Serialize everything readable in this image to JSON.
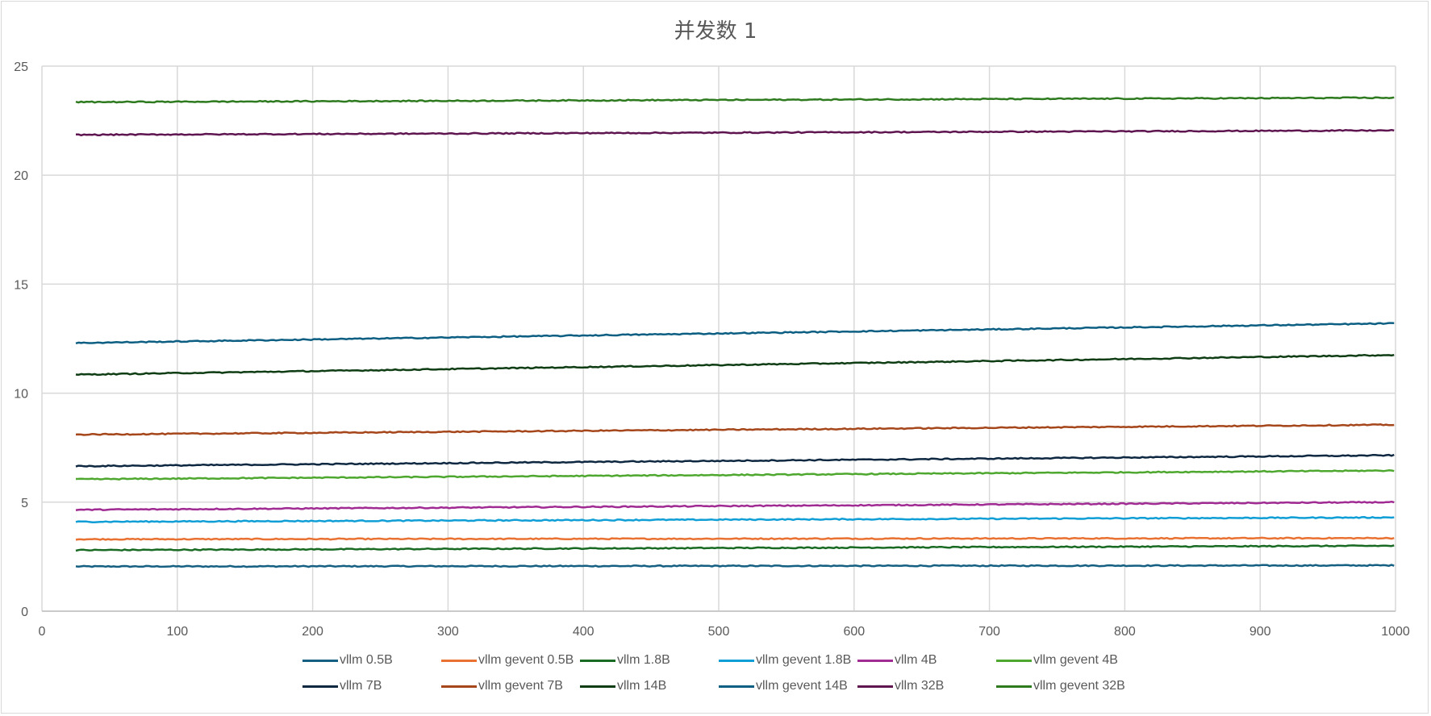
{
  "chart_data": {
    "type": "line",
    "title": "并发数 1",
    "xlabel": "",
    "ylabel": "",
    "xlim": [
      0,
      1000
    ],
    "ylim": [
      0,
      25
    ],
    "x_ticks": [
      0,
      100,
      200,
      300,
      400,
      500,
      600,
      700,
      800,
      900,
      1000
    ],
    "y_ticks": [
      0,
      5,
      10,
      15,
      20,
      25
    ],
    "grid": true,
    "legend_position": "bottom",
    "x_range_of_series": [
      25,
      1000
    ],
    "series": [
      {
        "name": "vllm 0.5B",
        "color": "#156082",
        "start": 2.05,
        "end": 2.1
      },
      {
        "name": "vllm gevent 0.5B",
        "color": "#E97132",
        "start": 3.3,
        "end": 3.35
      },
      {
        "name": "vllm 1.8B",
        "color": "#196B24",
        "start": 2.8,
        "end": 3.0
      },
      {
        "name": "vllm gevent 1.8B",
        "color": "#0F9ED5",
        "start": 4.1,
        "end": 4.3
      },
      {
        "name": "vllm 4B",
        "color": "#A02B93",
        "start": 4.65,
        "end": 5.0
      },
      {
        "name": "vllm gevent 4B",
        "color": "#4EA72E",
        "start": 6.05,
        "end": 6.45
      },
      {
        "name": "vllm 7B",
        "color": "#0E2841",
        "start": 6.65,
        "end": 7.15
      },
      {
        "name": "vllm gevent 7B",
        "color": "#A5461B",
        "start": 8.1,
        "end": 8.55
      },
      {
        "name": "vllm 14B",
        "color": "#0F3D14",
        "start": 10.85,
        "end": 11.75
      },
      {
        "name": "vllm gevent 14B",
        "color": "#0C5F82",
        "start": 12.3,
        "end": 13.2
      },
      {
        "name": "vllm 32B",
        "color": "#5E1550",
        "start": 21.85,
        "end": 22.05
      },
      {
        "name": "vllm gevent 32B",
        "color": "#2E7A1F",
        "start": 23.35,
        "end": 23.55
      }
    ]
  }
}
